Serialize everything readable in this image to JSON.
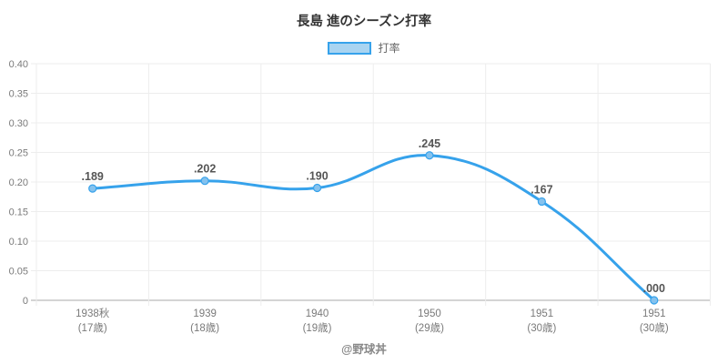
{
  "title": "長島 進のシーズン打率",
  "legend": {
    "label": "打率"
  },
  "footer": "@野球丼",
  "colors": {
    "line": "#36a2eb",
    "legend_fill": "#a9d4f1",
    "point_fill": "#85c2ee",
    "grid": "#ededed",
    "axis_line": "#c6c6c6",
    "tick_text": "#7a7a7a",
    "title_text": "#333333",
    "label_text": "#555555",
    "legend_text": "#666666",
    "footer_text": "#888888"
  },
  "chart_data": {
    "type": "line",
    "title": "長島 進のシーズン打率",
    "legend_entries": [
      "打率"
    ],
    "legend_position": "top",
    "categories": [
      "1938秋",
      "1939",
      "1940",
      "1950",
      "1951",
      "1951"
    ],
    "category_sublabels": [
      "(17歳)",
      "(18歳)",
      "(19歳)",
      "(29歳)",
      "(30歳)",
      "(30歳)"
    ],
    "series": [
      {
        "name": "打率",
        "values": [
          0.189,
          0.202,
          0.19,
          0.245,
          0.167,
          0.0
        ]
      }
    ],
    "point_labels": [
      ".189",
      ".202",
      ".190",
      ".245",
      ".167",
      ".000"
    ],
    "xlabel": "",
    "ylabel": "",
    "ylim": [
      0,
      0.4
    ],
    "ytick_step": 0.05,
    "ytick_labels": [
      "0.40",
      "0.35",
      "0.30",
      "0.25",
      "0.20",
      "0.15",
      "0.10",
      "0.05",
      "0"
    ],
    "grid": true,
    "smooth": true
  }
}
